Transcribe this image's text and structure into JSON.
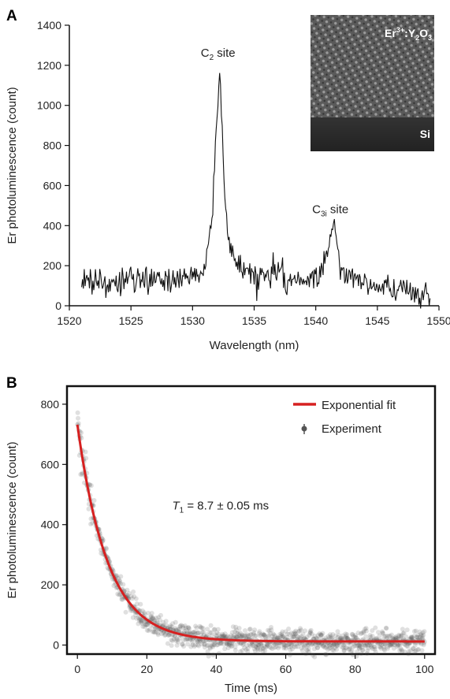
{
  "chart_data": [
    {
      "panel": "A",
      "type": "line",
      "xlabel": "Wavelength (nm)",
      "ylabel": "Er photoluminescence (count)",
      "xlim": [
        1520,
        1550
      ],
      "ylim": [
        0,
        1400
      ],
      "xticks": [
        1520,
        1525,
        1530,
        1535,
        1540,
        1545,
        1550
      ],
      "yticks": [
        0,
        200,
        400,
        600,
        800,
        1000,
        1200,
        1400
      ],
      "annotations": [
        {
          "base": "C",
          "sub": "2",
          "suffix": " site",
          "x": 1532.2,
          "y": 1250
        },
        {
          "base": "C",
          "sub": "3i",
          "suffix": " site",
          "x": 1541.5,
          "y": 470
        }
      ],
      "inset": {
        "top_label": {
          "base": "Er",
          "sup": "3+",
          "rest": ":Y",
          "sub1": "2",
          "mid": "O",
          "sub2": "3"
        },
        "bottom_label": "Si"
      },
      "series": [
        {
          "baseline_points": [
            [
              1521.0,
              130
            ],
            [
              1523.0,
              110
            ],
            [
              1525.0,
              120
            ],
            [
              1527.0,
              130
            ],
            [
              1529.0,
              135
            ],
            [
              1530.5,
              160
            ],
            [
              1531.2,
              240
            ],
            [
              1531.6,
              450
            ],
            [
              1531.9,
              850
            ],
            [
              1532.1,
              1060
            ],
            [
              1532.2,
              1170
            ],
            [
              1532.35,
              1000
            ],
            [
              1532.5,
              700
            ],
            [
              1532.8,
              350
            ],
            [
              1533.3,
              240
            ],
            [
              1534.0,
              200
            ],
            [
              1535.0,
              175
            ],
            [
              1536.0,
              160
            ],
            [
              1537.0,
              150
            ],
            [
              1538.0,
              130
            ],
            [
              1539.0,
              120
            ],
            [
              1540.0,
              145
            ],
            [
              1540.7,
              220
            ],
            [
              1541.1,
              300
            ],
            [
              1541.35,
              400
            ],
            [
              1541.5,
              415
            ],
            [
              1541.7,
              310
            ],
            [
              1542.0,
              170
            ],
            [
              1543.0,
              130
            ],
            [
              1544.0,
              110
            ],
            [
              1545.0,
              95
            ],
            [
              1546.0,
              85
            ],
            [
              1547.0,
              75
            ],
            [
              1548.0,
              60
            ],
            [
              1549.3,
              50
            ]
          ],
          "noise_amplitude": 45
        }
      ]
    },
    {
      "panel": "B",
      "type": "scatter",
      "xlabel": "Time (ms)",
      "ylabel": "Er photoluminescence (count)",
      "xlim": [
        -3,
        103
      ],
      "ylim": [
        -30,
        860
      ],
      "xticks": [
        0,
        20,
        40,
        60,
        80,
        100
      ],
      "yticks": [
        0,
        200,
        400,
        600,
        800
      ],
      "legend": {
        "position": "top-right",
        "entries": [
          "Exponential fit",
          "Experiment"
        ]
      },
      "annotation": {
        "italic": "T",
        "sub": "1",
        "rest": " = 8.7 ± 0.05 ms",
        "x": 45,
        "y": 450
      },
      "series": [
        {
          "name": "Exponential fit",
          "model": "y = A*exp(-t/tau) + C",
          "A": 720,
          "tau": 8.7,
          "C": 12,
          "color": "#d62020"
        },
        {
          "name": "Experiment",
          "color": "#555555",
          "n_points": 1200,
          "noise_sd": 18,
          "x_range": [
            0,
            100
          ]
        }
      ]
    }
  ],
  "panel_labels": {
    "a": "A",
    "b": "B"
  }
}
